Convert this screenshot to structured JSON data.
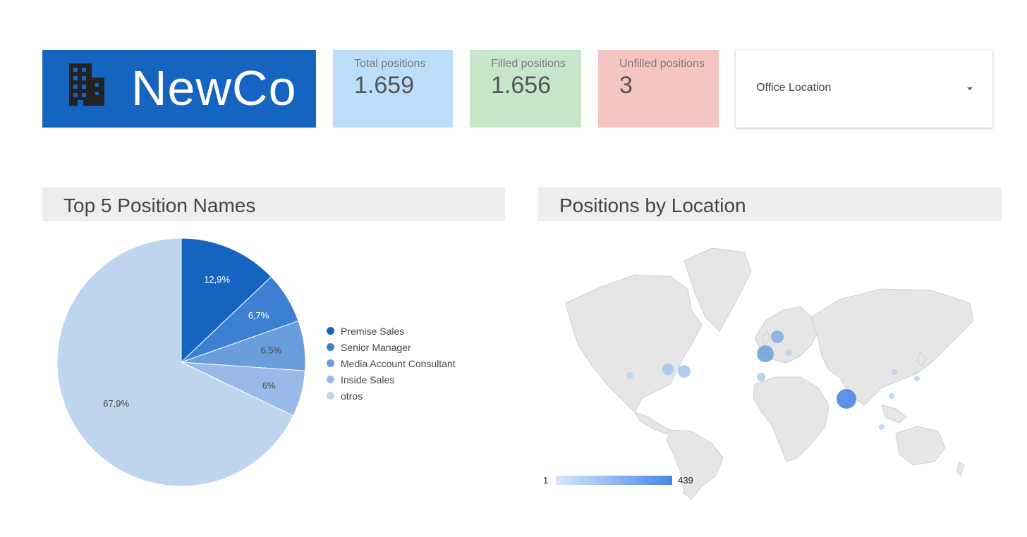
{
  "brand": {
    "name": "NewCo",
    "icon": "office-building-icon",
    "color": "#1565c0"
  },
  "kpis": {
    "total": {
      "label": "Total positions",
      "value": "1.659",
      "color": "#bbdefb"
    },
    "filled": {
      "label": "Filled positions",
      "value": "1.656",
      "color": "#c8e6c9"
    },
    "unfilled": {
      "label": "Unfilled positions",
      "value": "3",
      "color": "#f5c6c1"
    }
  },
  "filter": {
    "label": "Office Location",
    "icon": "dropdown-arrow-icon"
  },
  "top5": {
    "title": "Top 5 Position Names",
    "chart_data": {
      "type": "pie",
      "categories": [
        "Premise Sales",
        "Senior Manager",
        "Media Account Consultant",
        "Inside Sales",
        "otros"
      ],
      "values": [
        12.9,
        6.7,
        6.5,
        6.0,
        67.9
      ],
      "labels": [
        "12,9%",
        "6,7%",
        "6,5%",
        "6%",
        "67,9%"
      ],
      "colors": [
        "#1565c0",
        "#3d7fd1",
        "#6a9ddb",
        "#97bbe6",
        "#bfd5ee"
      ],
      "legend": "right"
    }
  },
  "location": {
    "title": "Positions by Location",
    "map_type": "bubble-map-world",
    "scale": {
      "min": "1",
      "max": "439",
      "color_min": "#d8e6fb",
      "color_max": "#4a86e8"
    }
  }
}
